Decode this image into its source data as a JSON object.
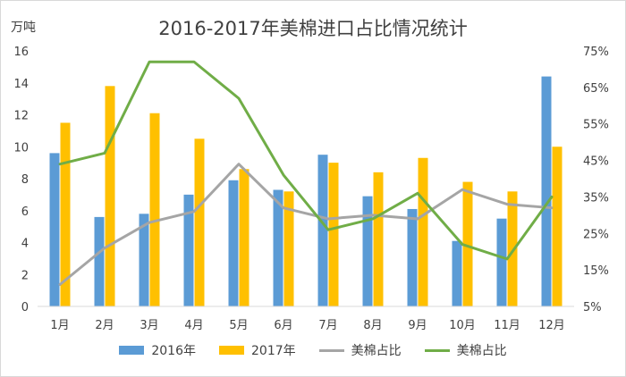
{
  "chart_data": {
    "type": "bar",
    "title": "2016-2017年美棉进口占比情况统计",
    "ylabel": "万吨",
    "categories": [
      "1月",
      "2月",
      "3月",
      "4月",
      "5月",
      "6月",
      "7月",
      "8月",
      "9月",
      "10月",
      "11月",
      "12月"
    ],
    "ylim": [
      0,
      16
    ],
    "yticks": [
      0,
      2,
      4,
      6,
      8,
      10,
      12,
      14,
      16
    ],
    "y2lim": [
      0.05,
      0.75
    ],
    "y2ticks": [
      "5%",
      "15%",
      "25%",
      "35%",
      "45%",
      "55%",
      "65%",
      "75%"
    ],
    "grid": false,
    "legend_position": "bottom",
    "series": [
      {
        "name": "2016年",
        "type": "bar",
        "axis": "left",
        "color": "#5b9bd5",
        "values": [
          9.6,
          5.6,
          5.8,
          7.0,
          7.9,
          7.3,
          9.5,
          6.9,
          6.1,
          4.1,
          5.5,
          14.4
        ]
      },
      {
        "name": "2017年",
        "type": "bar",
        "axis": "left",
        "color": "#ffc000",
        "values": [
          11.5,
          13.8,
          12.1,
          10.5,
          8.6,
          7.2,
          9.0,
          8.4,
          9.3,
          7.8,
          7.2,
          10.0
        ]
      },
      {
        "name": "美棉占比",
        "type": "line",
        "axis": "right",
        "color": "#a5a5a5",
        "values": [
          0.11,
          0.21,
          0.28,
          0.31,
          0.44,
          0.32,
          0.29,
          0.3,
          0.29,
          0.37,
          0.33,
          0.32
        ]
      },
      {
        "name": "美棉占比",
        "type": "line",
        "axis": "right",
        "color": "#70ad47",
        "values": [
          0.44,
          0.47,
          0.72,
          0.72,
          0.62,
          0.41,
          0.26,
          0.29,
          0.36,
          0.22,
          0.18,
          0.35
        ]
      }
    ]
  }
}
